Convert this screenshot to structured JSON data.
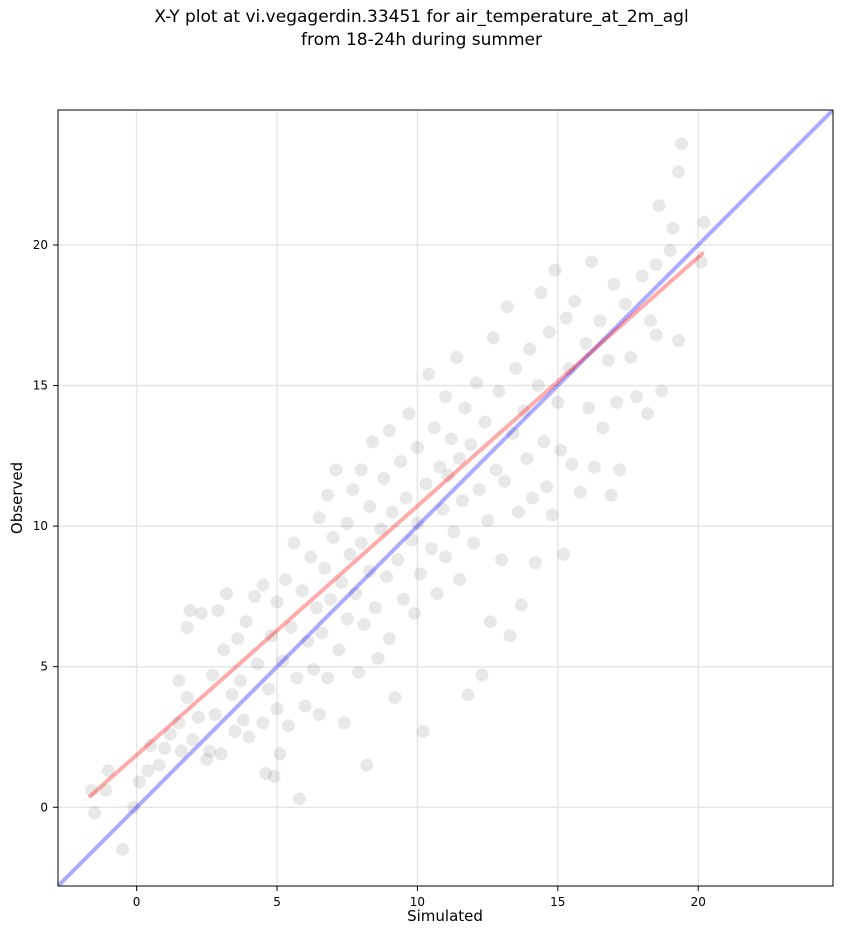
{
  "chart_data": {
    "type": "scatter",
    "title_line1": "X-Y plot at vi.vegagerdin.33451 for air_temperature_at_2m_agl",
    "title_line2": "from 18-24h during summer",
    "xlabel": "Simulated",
    "ylabel": "Observed",
    "xlim": [
      -2.8,
      24.8
    ],
    "ylim": [
      -2.8,
      24.8
    ],
    "xticks": [
      0,
      5,
      10,
      15,
      20
    ],
    "yticks": [
      0,
      5,
      10,
      15,
      20
    ],
    "xtick_labels": [
      "0",
      "5",
      "10",
      "15",
      "20"
    ],
    "ytick_labels": [
      "0",
      "5",
      "10",
      "15",
      "20"
    ],
    "grid": true,
    "point_color": "#000000",
    "point_opacity": 0.09,
    "identity_line": {
      "x": [
        -2.8,
        24.8
      ],
      "y": [
        -2.8,
        24.8
      ],
      "color": "#0000ff"
    },
    "regression_line": {
      "x": [
        -1.65,
        20.15
      ],
      "y": [
        0.4,
        19.7
      ],
      "color": "#ff0000"
    },
    "points": [
      [
        -1.6,
        0.6
      ],
      [
        -1.5,
        -0.2
      ],
      [
        -1.1,
        0.6
      ],
      [
        -1.0,
        1.3
      ],
      [
        -0.5,
        -1.5
      ],
      [
        -0.1,
        0.0
      ],
      [
        0.1,
        0.9
      ],
      [
        0.4,
        1.3
      ],
      [
        0.5,
        2.2
      ],
      [
        0.8,
        1.5
      ],
      [
        1.0,
        2.1
      ],
      [
        1.2,
        2.6
      ],
      [
        1.5,
        4.5
      ],
      [
        1.5,
        3.0
      ],
      [
        1.6,
        2.0
      ],
      [
        1.8,
        3.9
      ],
      [
        1.8,
        6.4
      ],
      [
        1.9,
        7.0
      ],
      [
        2.0,
        2.4
      ],
      [
        2.2,
        3.2
      ],
      [
        2.3,
        6.9
      ],
      [
        2.5,
        1.7
      ],
      [
        2.6,
        2.0
      ],
      [
        2.7,
        4.7
      ],
      [
        2.8,
        3.3
      ],
      [
        2.9,
        7.0
      ],
      [
        3.0,
        1.9
      ],
      [
        3.1,
        5.6
      ],
      [
        3.2,
        7.6
      ],
      [
        3.4,
        4.0
      ],
      [
        3.5,
        2.7
      ],
      [
        3.6,
        6.0
      ],
      [
        3.7,
        4.5
      ],
      [
        3.8,
        3.1
      ],
      [
        3.9,
        6.6
      ],
      [
        4.0,
        2.5
      ],
      [
        4.2,
        7.5
      ],
      [
        4.3,
        5.1
      ],
      [
        4.5,
        3.0
      ],
      [
        4.5,
        7.9
      ],
      [
        4.6,
        1.2
      ],
      [
        4.7,
        4.2
      ],
      [
        4.8,
        6.1
      ],
      [
        4.9,
        1.1
      ],
      [
        5.0,
        3.5
      ],
      [
        5.0,
        7.3
      ],
      [
        5.1,
        1.9
      ],
      [
        5.2,
        5.2
      ],
      [
        5.3,
        8.1
      ],
      [
        5.4,
        2.9
      ],
      [
        5.5,
        6.4
      ],
      [
        5.6,
        9.4
      ],
      [
        5.7,
        4.6
      ],
      [
        5.8,
        0.3
      ],
      [
        5.9,
        7.7
      ],
      [
        6.0,
        3.6
      ],
      [
        6.1,
        5.9
      ],
      [
        6.2,
        8.9
      ],
      [
        6.3,
        4.9
      ],
      [
        6.4,
        7.1
      ],
      [
        6.5,
        3.3
      ],
      [
        6.5,
        10.3
      ],
      [
        6.6,
        6.2
      ],
      [
        6.7,
        8.5
      ],
      [
        6.8,
        11.1
      ],
      [
        6.8,
        4.6
      ],
      [
        6.9,
        7.4
      ],
      [
        7.0,
        9.6
      ],
      [
        7.1,
        12.0
      ],
      [
        7.2,
        5.6
      ],
      [
        7.3,
        8.0
      ],
      [
        7.4,
        3.0
      ],
      [
        7.5,
        10.1
      ],
      [
        7.5,
        6.7
      ],
      [
        7.6,
        9.0
      ],
      [
        7.7,
        11.3
      ],
      [
        7.8,
        7.6
      ],
      [
        7.9,
        4.8
      ],
      [
        8.0,
        9.4
      ],
      [
        8.0,
        12.0
      ],
      [
        8.1,
        6.5
      ],
      [
        8.2,
        1.5
      ],
      [
        8.3,
        8.4
      ],
      [
        8.3,
        10.7
      ],
      [
        8.4,
        13.0
      ],
      [
        8.5,
        7.1
      ],
      [
        8.6,
        5.3
      ],
      [
        8.7,
        9.9
      ],
      [
        8.8,
        11.7
      ],
      [
        8.9,
        8.2
      ],
      [
        9.0,
        13.4
      ],
      [
        9.0,
        6.0
      ],
      [
        9.1,
        10.5
      ],
      [
        9.2,
        3.9
      ],
      [
        9.3,
        8.8
      ],
      [
        9.4,
        12.3
      ],
      [
        9.5,
        7.4
      ],
      [
        9.6,
        11.0
      ],
      [
        9.7,
        14.0
      ],
      [
        9.8,
        9.5
      ],
      [
        9.9,
        6.9
      ],
      [
        10.0,
        12.8
      ],
      [
        10.0,
        10.1
      ],
      [
        10.1,
        8.3
      ],
      [
        10.2,
        2.7
      ],
      [
        10.3,
        11.5
      ],
      [
        10.4,
        15.4
      ],
      [
        10.5,
        9.2
      ],
      [
        10.6,
        13.5
      ],
      [
        10.7,
        7.6
      ],
      [
        10.8,
        12.1
      ],
      [
        10.9,
        10.6
      ],
      [
        11.0,
        14.6
      ],
      [
        11.0,
        8.9
      ],
      [
        11.1,
        11.8
      ],
      [
        11.2,
        13.1
      ],
      [
        11.3,
        9.8
      ],
      [
        11.4,
        16.0
      ],
      [
        11.5,
        12.4
      ],
      [
        11.5,
        8.1
      ],
      [
        11.6,
        10.9
      ],
      [
        11.7,
        14.2
      ],
      [
        11.8,
        4.0
      ],
      [
        11.9,
        12.9
      ],
      [
        12.0,
        9.4
      ],
      [
        12.1,
        15.1
      ],
      [
        12.2,
        11.3
      ],
      [
        12.3,
        4.7
      ],
      [
        12.4,
        13.7
      ],
      [
        12.5,
        10.2
      ],
      [
        12.6,
        6.6
      ],
      [
        12.7,
        16.7
      ],
      [
        12.8,
        12.0
      ],
      [
        12.9,
        14.8
      ],
      [
        13.0,
        8.8
      ],
      [
        13.1,
        11.6
      ],
      [
        13.2,
        17.8
      ],
      [
        13.3,
        6.1
      ],
      [
        13.4,
        13.3
      ],
      [
        13.5,
        15.6
      ],
      [
        13.6,
        10.5
      ],
      [
        13.7,
        7.2
      ],
      [
        13.8,
        14.1
      ],
      [
        13.9,
        12.4
      ],
      [
        14.0,
        16.3
      ],
      [
        14.1,
        11.0
      ],
      [
        14.2,
        8.7
      ],
      [
        14.3,
        15.0
      ],
      [
        14.4,
        18.3
      ],
      [
        14.5,
        13.0
      ],
      [
        14.6,
        11.4
      ],
      [
        14.7,
        16.9
      ],
      [
        14.8,
        10.4
      ],
      [
        14.9,
        19.1
      ],
      [
        15.0,
        14.4
      ],
      [
        15.1,
        12.7
      ],
      [
        15.2,
        9.0
      ],
      [
        15.3,
        17.4
      ],
      [
        15.4,
        15.6
      ],
      [
        15.5,
        12.2
      ],
      [
        15.6,
        18.0
      ],
      [
        15.8,
        11.2
      ],
      [
        16.0,
        16.5
      ],
      [
        16.1,
        14.2
      ],
      [
        16.2,
        19.4
      ],
      [
        16.3,
        12.1
      ],
      [
        16.5,
        17.3
      ],
      [
        16.6,
        13.5
      ],
      [
        16.8,
        15.9
      ],
      [
        16.9,
        11.1
      ],
      [
        17.0,
        18.6
      ],
      [
        17.1,
        14.4
      ],
      [
        17.2,
        12.0
      ],
      [
        17.4,
        17.9
      ],
      [
        17.6,
        16.0
      ],
      [
        17.8,
        14.6
      ],
      [
        18.0,
        18.9
      ],
      [
        18.2,
        14.0
      ],
      [
        18.3,
        17.3
      ],
      [
        18.5,
        19.3
      ],
      [
        18.5,
        16.8
      ],
      [
        18.6,
        21.4
      ],
      [
        18.7,
        14.8
      ],
      [
        19.0,
        19.8
      ],
      [
        19.1,
        20.6
      ],
      [
        19.3,
        22.6
      ],
      [
        19.3,
        16.6
      ],
      [
        19.4,
        23.6
      ],
      [
        20.1,
        19.4
      ],
      [
        20.2,
        20.8
      ]
    ]
  }
}
